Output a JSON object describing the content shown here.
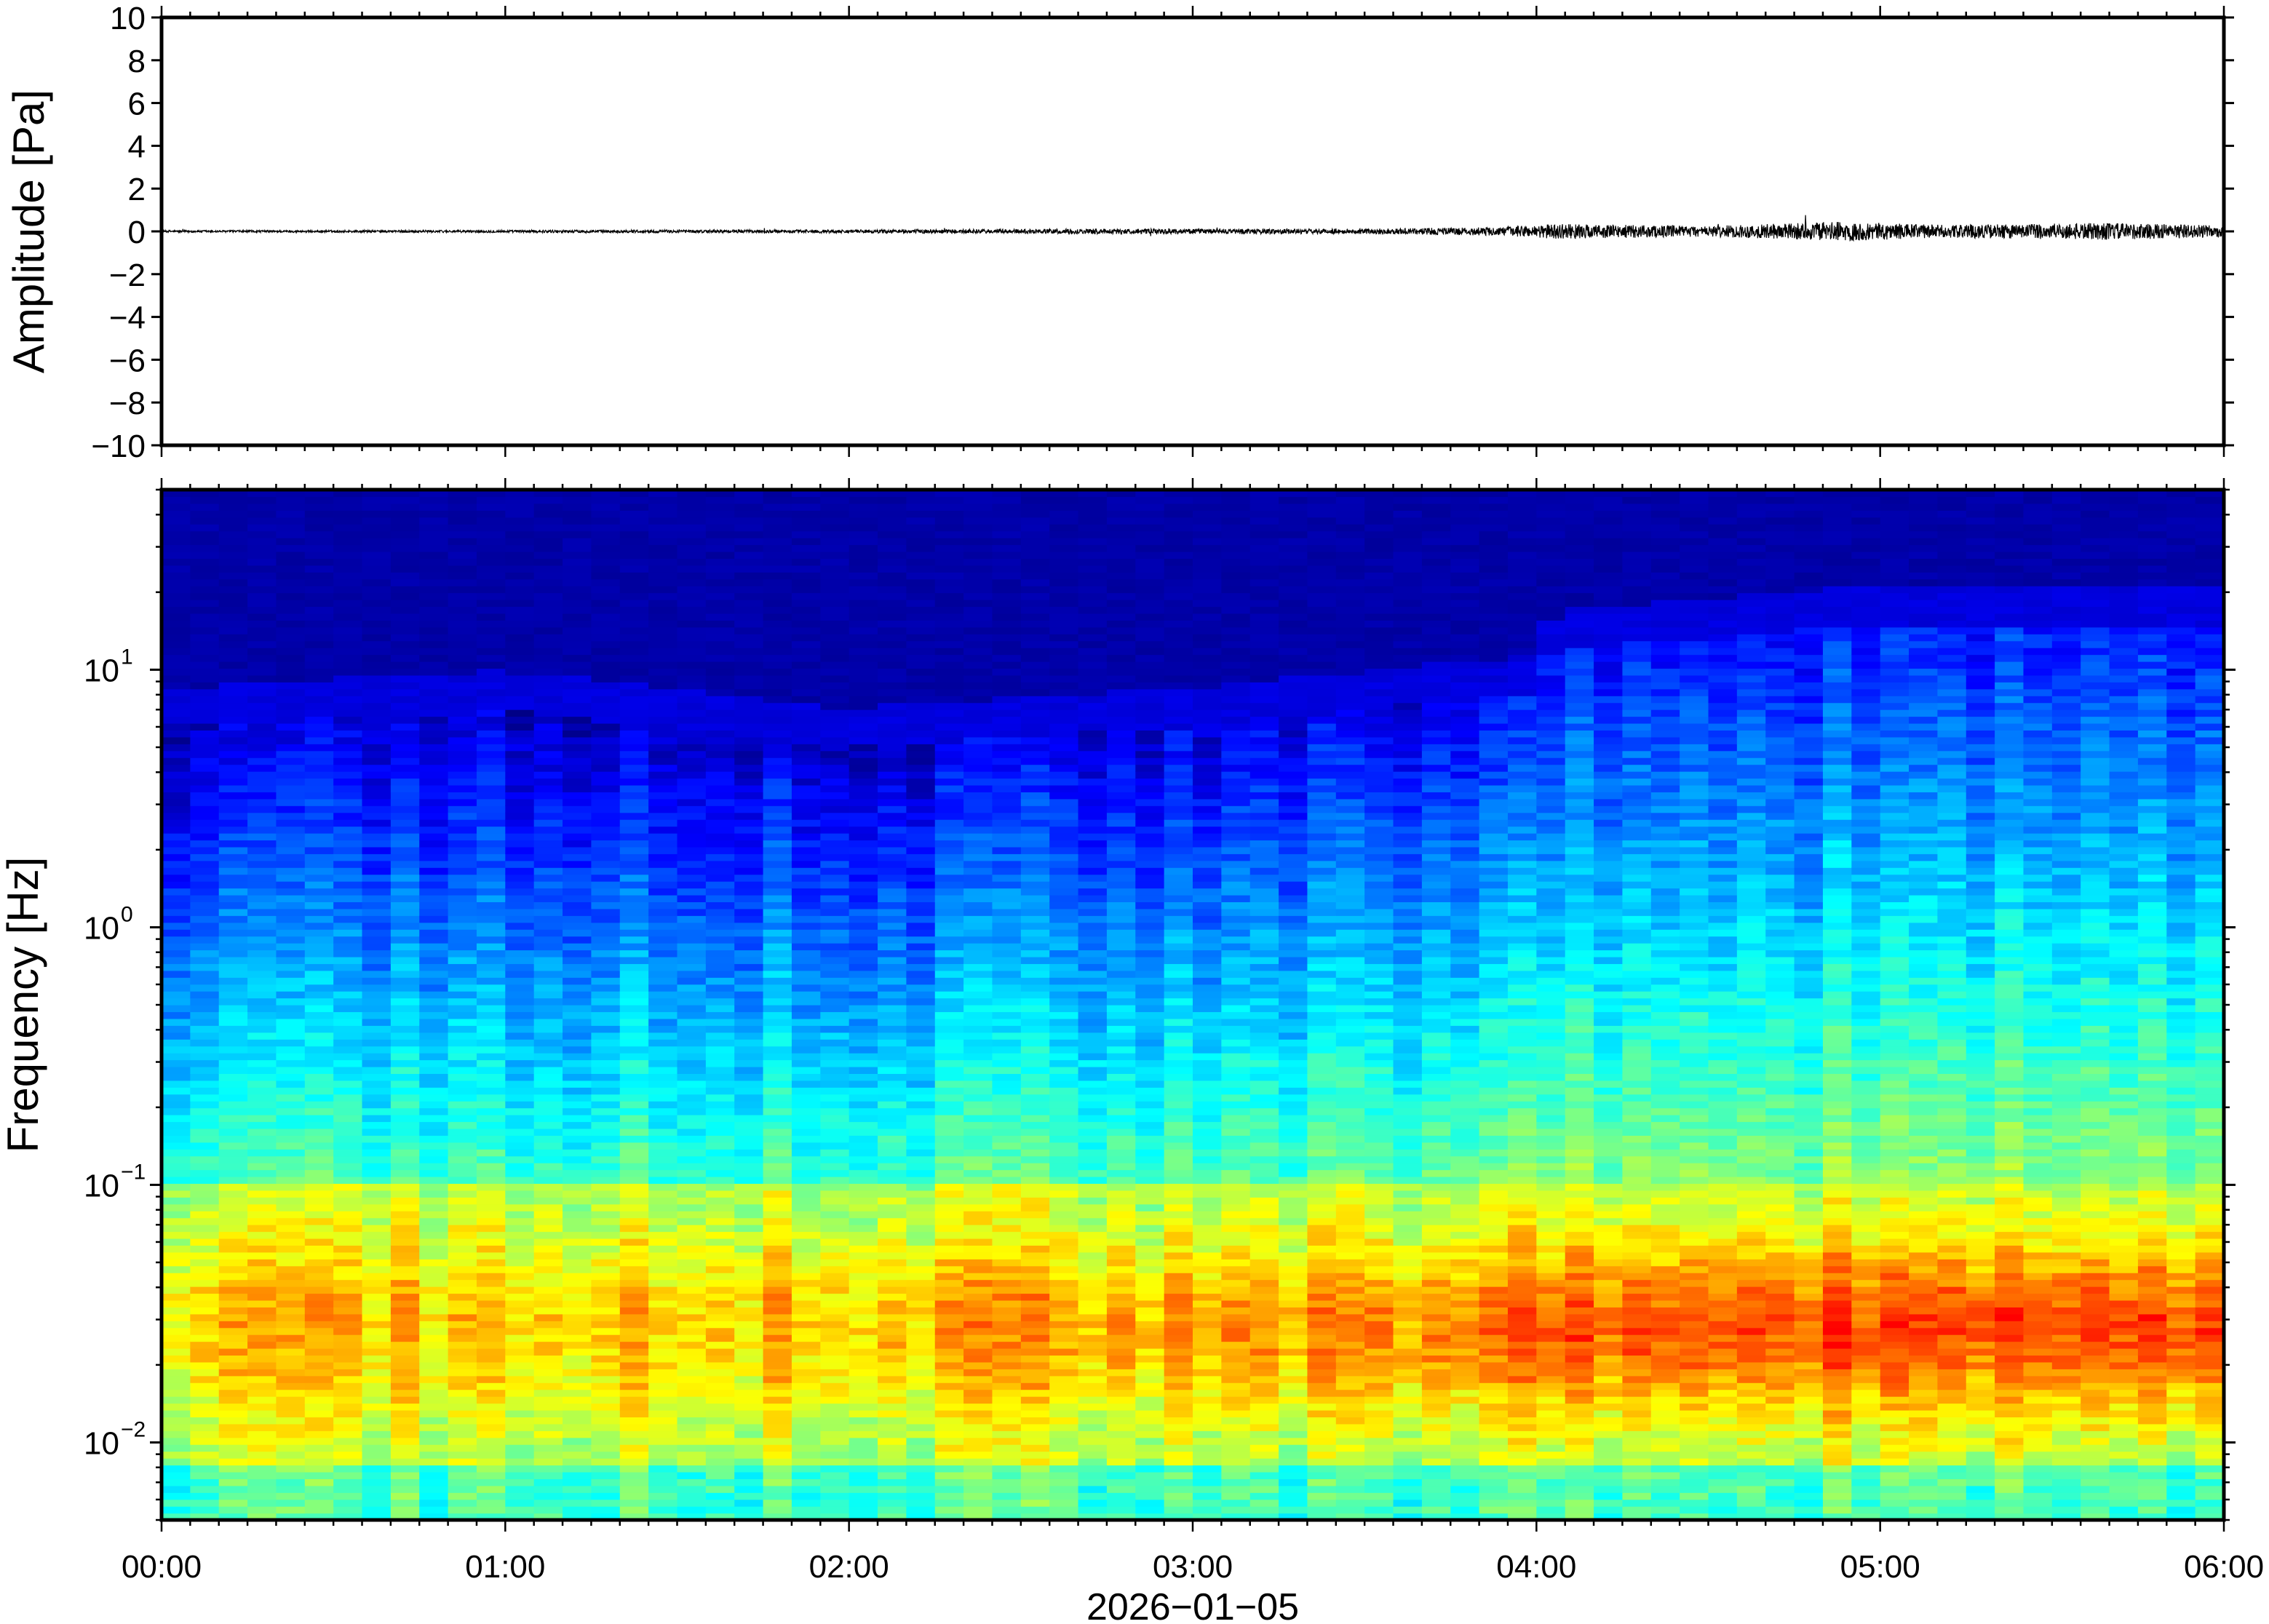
{
  "chart_data": [
    {
      "type": "line",
      "panel": "waveform",
      "ylabel": "Amplitude [Pa]",
      "ylim": [
        -10,
        10
      ],
      "yticks": [
        10,
        8,
        6,
        4,
        2,
        0,
        -2,
        -4,
        -6,
        -8,
        -10
      ],
      "ytick_labels": [
        "10",
        "8",
        "6",
        "4",
        "2",
        "0",
        "−2",
        "−4",
        "−6",
        "−8",
        "−10"
      ],
      "xlim": [
        "00:00",
        "06:00"
      ],
      "line_color": "#000000",
      "envelope": [
        {
          "t": 0.0,
          "amp": 0.05
        },
        {
          "t": 1.0,
          "amp": 0.06
        },
        {
          "t": 2.0,
          "amp": 0.08
        },
        {
          "t": 2.75,
          "amp": 0.12
        },
        {
          "t": 3.5,
          "amp": 0.12
        },
        {
          "t": 3.9,
          "amp": 0.2
        },
        {
          "t": 4.05,
          "amp": 0.35
        },
        {
          "t": 4.5,
          "amp": 0.25
        },
        {
          "t": 4.88,
          "amp": 0.45
        },
        {
          "t": 5.2,
          "amp": 0.3
        },
        {
          "t": 5.65,
          "amp": 0.4
        },
        {
          "t": 6.0,
          "amp": 0.28
        }
      ]
    },
    {
      "type": "heatmap",
      "panel": "spectrogram",
      "ylabel": "Frequency [Hz]",
      "yscale": "log",
      "ylim": [
        0.005,
        50
      ],
      "yticks": [
        {
          "value": 0.01,
          "base": "10",
          "exp": "−2"
        },
        {
          "value": 0.1,
          "base": "10",
          "exp": "−1"
        },
        {
          "value": 1,
          "base": "10",
          "exp": "0"
        },
        {
          "value": 10,
          "base": "10",
          "exp": "1"
        }
      ],
      "xlabel": "2026−01−05",
      "xlim": [
        "00:00",
        "06:00"
      ],
      "xticks": [
        "00:00",
        "01:00",
        "02:00",
        "03:00",
        "04:00",
        "05:00",
        "06:00"
      ],
      "colormap": "jet",
      "colormap_stops": [
        "#000080",
        "#0000ff",
        "#0080ff",
        "#00ffff",
        "#80ff80",
        "#ffff00",
        "#ff8000",
        "#ff0000"
      ],
      "energy_profile": [
        {
          "t": 0.0,
          "low_freq_level": 0.6,
          "upper_edge_hz": 6
        },
        {
          "t": 1.0,
          "low_freq_level": 0.6,
          "upper_edge_hz": 7
        },
        {
          "t": 2.0,
          "low_freq_level": 0.62,
          "upper_edge_hz": 5
        },
        {
          "t": 3.0,
          "low_freq_level": 0.66,
          "upper_edge_hz": 6
        },
        {
          "t": 4.0,
          "low_freq_level": 0.7,
          "upper_edge_hz": 8
        },
        {
          "t": 4.05,
          "low_freq_level": 0.72,
          "upper_edge_hz": 12
        },
        {
          "t": 5.0,
          "low_freq_level": 0.74,
          "upper_edge_hz": 15
        },
        {
          "t": 6.0,
          "low_freq_level": 0.76,
          "upper_edge_hz": 15
        }
      ]
    }
  ]
}
